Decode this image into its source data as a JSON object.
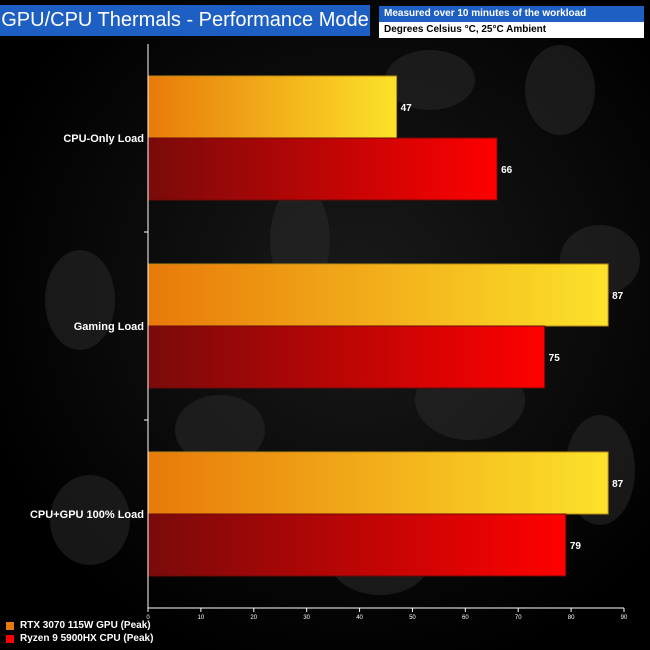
{
  "title": "GPU/CPU Thermals - Performance Mode",
  "info": {
    "line1": "Measured over 10 minutes of the workload",
    "line2": "Degrees Celsius °C, 25°C Ambient"
  },
  "colors": {
    "gpu_dark": "#e87a0a",
    "gpu_light": "#fce22a",
    "cpu_dark": "#7a0a0a",
    "cpu_light": "#ff0000",
    "title_bg": "#1e5fc4"
  },
  "chart_data": {
    "type": "bar",
    "orientation": "horizontal",
    "categories": [
      "CPU-Only Load",
      "Gaming Load",
      "CPU+GPU 100% Load"
    ],
    "series": [
      {
        "name": "RTX 3070 115W GPU (Peak)",
        "values": [
          47,
          87,
          87
        ]
      },
      {
        "name": "Ryzen 9 5900HX CPU (Peak)",
        "values": [
          66,
          75,
          79
        ]
      }
    ],
    "xlim": [
      0,
      90
    ],
    "xticks": [
      0,
      10,
      20,
      30,
      40,
      50,
      60,
      70,
      80,
      90
    ],
    "legend": "bottom-left",
    "grid": false
  }
}
